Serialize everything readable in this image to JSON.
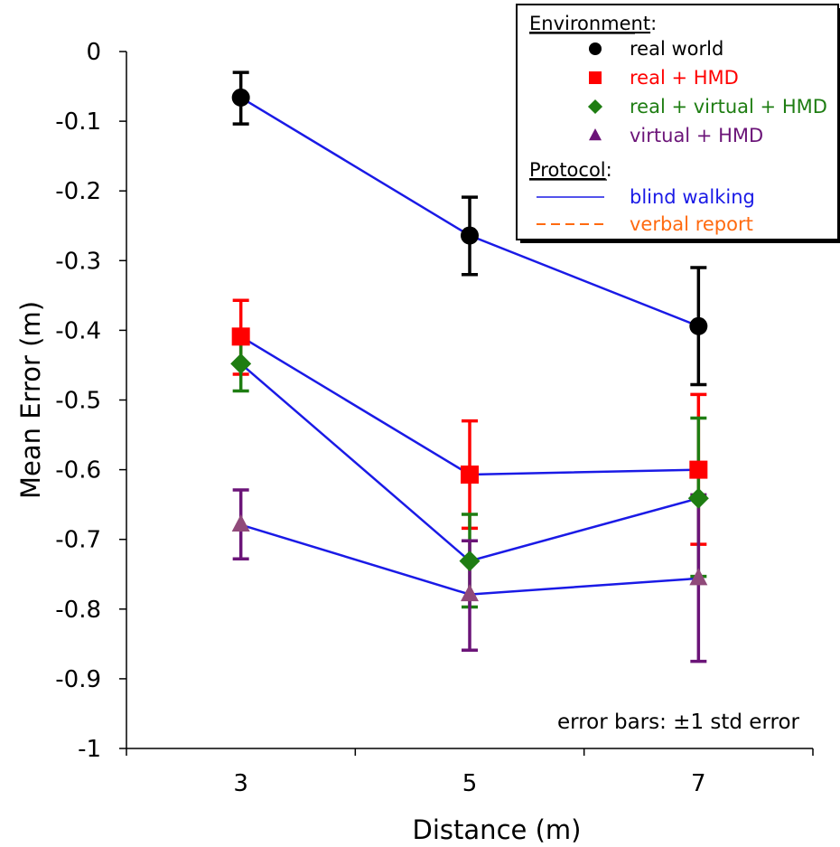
{
  "chart_data": {
    "type": "line",
    "xlabel": "Distance (m)",
    "ylabel": "Mean Error (m)",
    "xlim": [
      2,
      8
    ],
    "ylim": [
      -1,
      0
    ],
    "x_ticks": [
      {
        "value": 3,
        "label": "3"
      },
      {
        "value": 5,
        "label": "5"
      },
      {
        "value": 7,
        "label": "7"
      }
    ],
    "y_ticks": [
      {
        "value": 0,
        "label": "0"
      },
      {
        "value": -0.1,
        "label": "-0.1"
      },
      {
        "value": -0.2,
        "label": "-0.2"
      },
      {
        "value": -0.3,
        "label": "-0.3"
      },
      {
        "value": -0.4,
        "label": "-0.4"
      },
      {
        "value": -0.5,
        "label": "-0.5"
      },
      {
        "value": -0.6,
        "label": "-0.6"
      },
      {
        "value": -0.7,
        "label": "-0.7"
      },
      {
        "value": -0.8,
        "label": "-0.8"
      },
      {
        "value": -0.9,
        "label": "-0.9"
      },
      {
        "value": -1,
        "label": "-1"
      }
    ],
    "grid": false,
    "line_color": "#1a1ae6",
    "series": [
      {
        "name": "real world",
        "marker": "circle",
        "marker_color": "#000000",
        "errorbar_color": "#000000",
        "x": [
          3,
          5,
          7
        ],
        "y": [
          -0.066,
          -0.264,
          -0.394
        ],
        "err_low": [
          -0.104,
          -0.32,
          -0.478
        ],
        "err_high": [
          -0.03,
          -0.209,
          -0.31
        ]
      },
      {
        "name": "real + HMD",
        "marker": "square",
        "marker_color": "#ff0000",
        "errorbar_color": "#ff0000",
        "x": [
          3,
          5,
          7
        ],
        "y": [
          -0.409,
          -0.607,
          -0.6
        ],
        "err_low": [
          -0.463,
          -0.684,
          -0.707
        ],
        "err_high": [
          -0.357,
          -0.53,
          -0.492
        ]
      },
      {
        "name": "real + virtual + HMD",
        "marker": "diamond",
        "marker_color": "#1e7d12",
        "errorbar_color": "#1e7d12",
        "x": [
          3,
          5,
          7
        ],
        "y": [
          -0.448,
          -0.731,
          -0.641
        ],
        "err_low": [
          -0.487,
          -0.797,
          -0.753
        ],
        "err_high": [
          -0.41,
          -0.664,
          -0.526
        ]
      },
      {
        "name": "virtual + HMD",
        "marker": "triangle",
        "marker_color": "#904a7a",
        "errorbar_color": "#6b1478",
        "x": [
          3,
          5,
          7
        ],
        "y": [
          -0.679,
          -0.779,
          -0.756
        ],
        "err_low": [
          -0.728,
          -0.859,
          -0.875
        ],
        "err_high": [
          -0.629,
          -0.702,
          -0.636
        ]
      }
    ],
    "legend": {
      "position": "top-right",
      "environment_title": "Environment",
      "environment_suffix": ":",
      "protocol_title": "Protocol",
      "protocol_suffix": ":",
      "entries": [
        {
          "label": "real world",
          "color": "#000000",
          "marker": "circle"
        },
        {
          "label": "real + HMD",
          "color": "#ff0000",
          "marker": "square"
        },
        {
          "label": "real + virtual + HMD",
          "color": "#1e7d12",
          "marker": "diamond"
        },
        {
          "label": "virtual + HMD",
          "color": "#6b1478",
          "marker": "triangle"
        }
      ],
      "protocols": [
        {
          "label": "blind walking",
          "color": "#1a1ae6",
          "dash": "solid"
        },
        {
          "label": "verbal report",
          "color": "#ff6a10",
          "dash": "dashed"
        }
      ]
    },
    "annotation": "error bars: ±1 std error"
  }
}
